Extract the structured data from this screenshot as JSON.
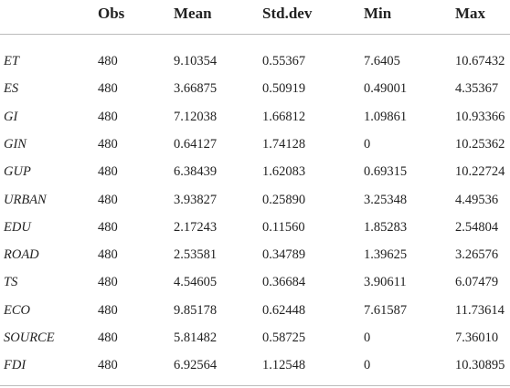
{
  "table": {
    "header": [
      "Obs",
      "Mean",
      "Std.dev",
      "Min",
      "Max"
    ],
    "rows": [
      [
        "ET",
        "480",
        "9.10354",
        "0.55367",
        "7.6405",
        "10.67432"
      ],
      [
        "ES",
        "480",
        "3.66875",
        "0.50919",
        "0.49001",
        "4.35367"
      ],
      [
        "GI",
        "480",
        "7.12038",
        "1.66812",
        "1.09861",
        "10.93366"
      ],
      [
        "GIN",
        "480",
        "0.64127",
        "1.74128",
        "0",
        "10.25362"
      ],
      [
        "GUP",
        "480",
        "6.38439",
        "1.62083",
        "0.69315",
        "10.22724"
      ],
      [
        "URBAN",
        "480",
        "3.93827",
        "0.25890",
        "3.25348",
        "4.49536"
      ],
      [
        "EDU",
        "480",
        "2.17243",
        "0.11560",
        "1.85283",
        "2.54804"
      ],
      [
        "ROAD",
        "480",
        "2.53581",
        "0.34789",
        "1.39625",
        "3.26576"
      ],
      [
        "TS",
        "480",
        "4.54605",
        "0.36684",
        "3.90611",
        "6.07479"
      ],
      [
        "ECO",
        "480",
        "9.85178",
        "0.62448",
        "7.61587",
        "11.73614"
      ],
      [
        "SOURCE",
        "480",
        "5.81482",
        "0.58725",
        "0",
        "7.36010"
      ],
      [
        "FDI",
        "480",
        "6.92564",
        "1.12548",
        "0",
        "10.30895"
      ]
    ]
  }
}
